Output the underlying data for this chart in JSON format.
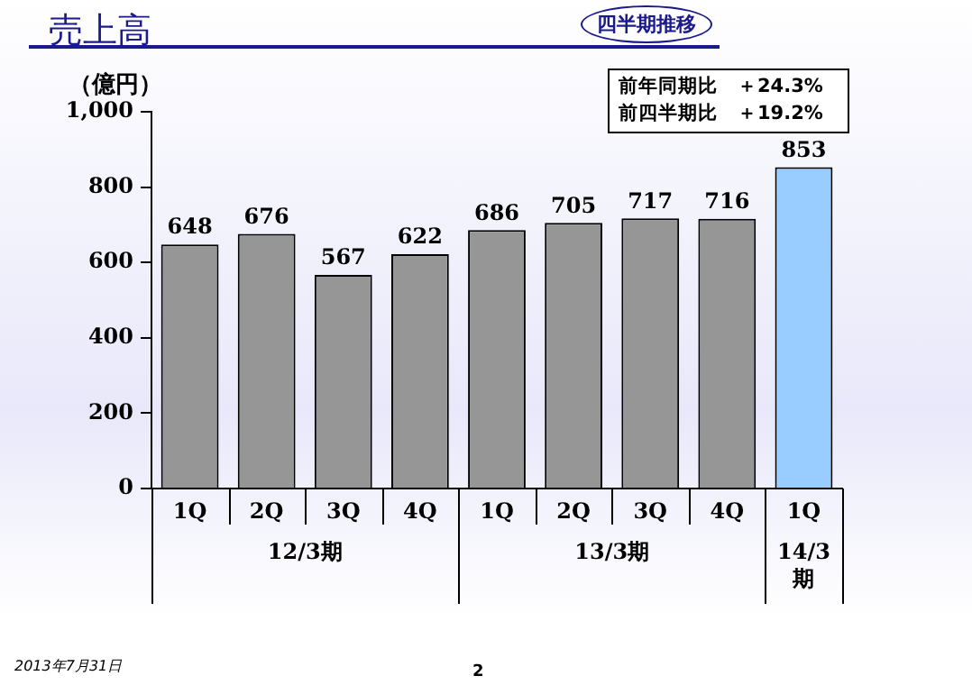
{
  "chart_data": {
    "type": "bar",
    "title": "売上高",
    "subtitle": "四半期推移",
    "ylabel": "（億円）",
    "categories": [
      "1Q",
      "2Q",
      "3Q",
      "4Q",
      "1Q",
      "2Q",
      "3Q",
      "4Q",
      "1Q"
    ],
    "values": [
      648,
      676,
      567,
      622,
      686,
      705,
      717,
      716,
      853
    ],
    "colors": [
      "#969696",
      "#969696",
      "#969696",
      "#969696",
      "#969696",
      "#969696",
      "#969696",
      "#969696",
      "#99ccff"
    ],
    "ylim": [
      0,
      1000
    ],
    "yticks": [
      0,
      200,
      400,
      600,
      800,
      {
        "value": 1000,
        "label": "1,000"
      }
    ],
    "data_labels": true,
    "grid": false,
    "legend": false,
    "annotations": [
      "前年同期比　＋24.3%",
      "前四半期比　＋19.2%",
      "12/3期",
      "13/3期",
      "14/3期",
      "2013年7月31日",
      "2"
    ]
  }
}
